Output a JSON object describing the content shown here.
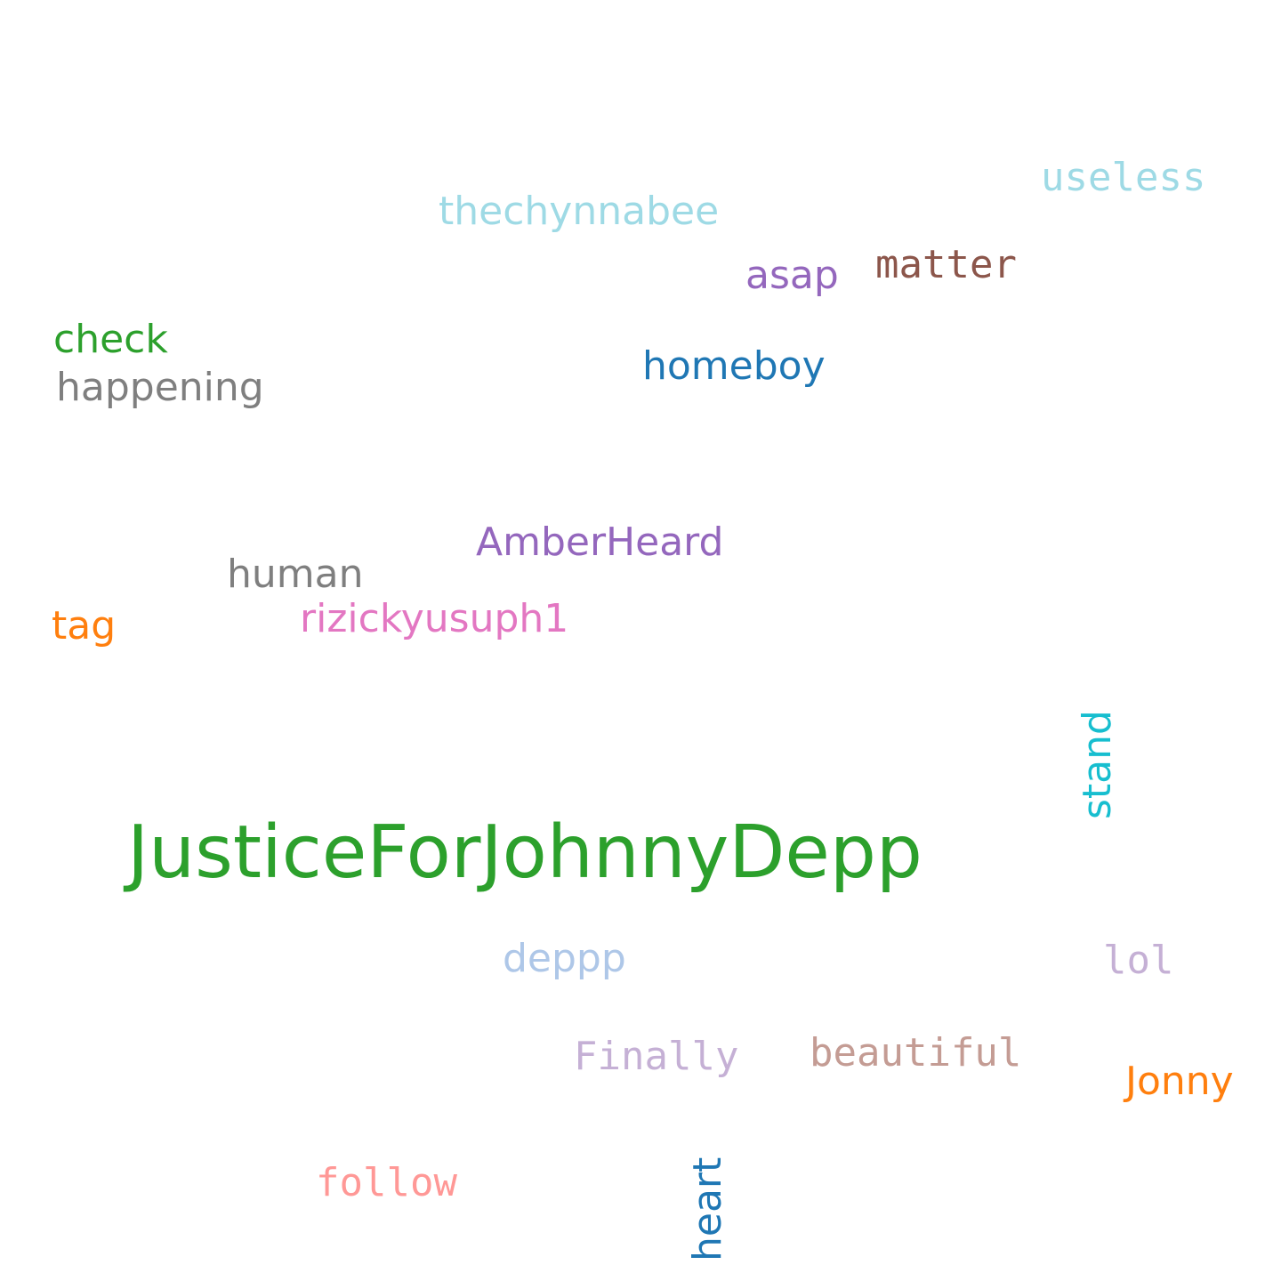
{
  "words": [
    {
      "text": "JusticeForJohnnyDepp",
      "color": "#2ca02c"
    },
    {
      "text": "useless",
      "color": "#9edae5"
    },
    {
      "text": "thechynnabee",
      "color": "#9edae5"
    },
    {
      "text": "matter",
      "color": "#8c564b"
    },
    {
      "text": "asap",
      "color": "#9467bd"
    },
    {
      "text": "check",
      "color": "#2ca02c"
    },
    {
      "text": "happening",
      "color": "#7f7f7f"
    },
    {
      "text": "homeboy",
      "color": "#1f77b4"
    },
    {
      "text": "AmberHeard",
      "color": "#9467bd"
    },
    {
      "text": "human",
      "color": "#7f7f7f"
    },
    {
      "text": "tag",
      "color": "#ff7f0e"
    },
    {
      "text": "rizickyusuph1",
      "color": "#e377c2"
    },
    {
      "text": "stand",
      "color": "#17becf"
    },
    {
      "text": "deppp",
      "color": "#aec7e8"
    },
    {
      "text": "lol",
      "color": "#c5b0d5"
    },
    {
      "text": "Finally",
      "color": "#c5b0d5"
    },
    {
      "text": "beautiful",
      "color": "#c49c94"
    },
    {
      "text": "Jonny",
      "color": "#ff7f0e"
    },
    {
      "text": "follow",
      "color": "#ff9896"
    },
    {
      "text": "heart",
      "color": "#1f77b4"
    }
  ]
}
